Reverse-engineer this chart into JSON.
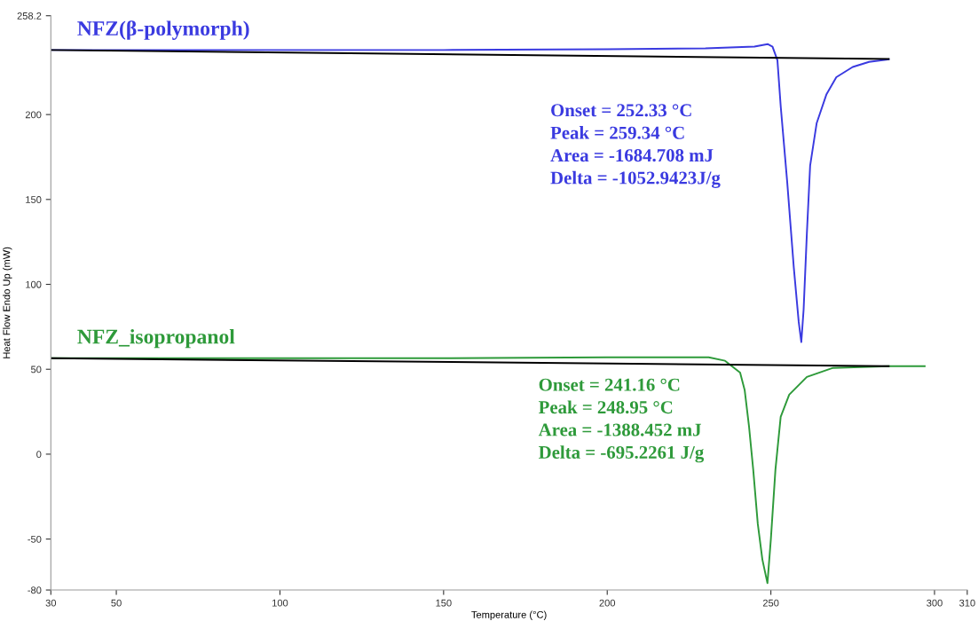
{
  "chart_data": {
    "type": "line",
    "xlabel": "Temperature (°C)",
    "ylabel": "Heat Flow Endo Up (mW)",
    "xlim": [
      30,
      310
    ],
    "xticks": [
      30,
      50,
      100,
      150,
      200,
      250,
      300,
      310
    ],
    "ylim": [
      -80,
      258.2
    ],
    "yticks": [
      258.2,
      200,
      150,
      100,
      50,
      0,
      -50,
      -80
    ],
    "grid": false,
    "legend": false,
    "marker": "none",
    "line_style": "solid",
    "series": [
      {
        "name": "NFZ(β-polymorph)",
        "color": "#3a3ae0",
        "x": [
          30,
          150,
          200,
          230,
          245,
          249,
          250.5,
          252,
          253,
          255,
          257,
          258.5,
          259.3,
          260,
          261,
          262,
          264,
          267,
          270,
          275,
          280,
          286
        ],
        "values": [
          238,
          238,
          238.5,
          239,
          240,
          241.5,
          240,
          232,
          205,
          160,
          110,
          78,
          66,
          85,
          130,
          170,
          195,
          212,
          222,
          228,
          231,
          232.5
        ]
      },
      {
        "color": "#000000",
        "x": [
          30,
          286
        ],
        "values": [
          238,
          232.7
        ]
      },
      {
        "name": "NFZ_isopropanol",
        "color": "#2e9a3a",
        "x": [
          30,
          150,
          200,
          231,
          236,
          240.6,
          242,
          243.3,
          244.6,
          246,
          247.4,
          248.95,
          250,
          251.4,
          253,
          255.6,
          261,
          269,
          286,
          297
        ],
        "values": [
          56.5,
          56.5,
          57,
          57,
          55,
          48,
          37.7,
          16.8,
          -9,
          -41,
          -62,
          -76,
          -50,
          -9,
          22,
          35,
          45.5,
          50.8,
          51.8,
          51.8
        ]
      },
      {
        "color": "#000000",
        "x": [
          30,
          286
        ],
        "values": [
          56.5,
          51.8
        ]
      }
    ],
    "annotations": [
      "Onset = 252.33 °C\nPeak = 259.34 °C\nArea = -1684.708 mJ\nDelta = -1052.9423J/g",
      "Onset = 241.16 °C\nPeak = 248.95 °C\nArea = -1388.452 mJ\nDelta = -695.2261 J/g"
    ]
  }
}
